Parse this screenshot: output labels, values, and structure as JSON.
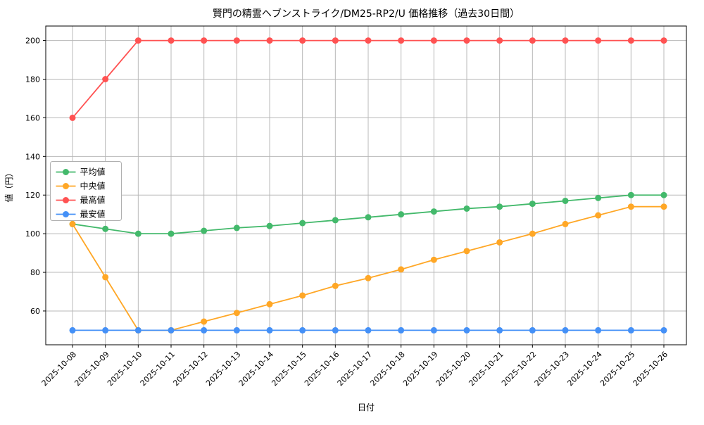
{
  "figure": {
    "background_color": "#ffffff",
    "grid_color": "#b8b8b8",
    "axes_edge_color": "#000000",
    "legend_border_color": "#b0b0b0"
  },
  "chart_data": {
    "type": "line",
    "title": "賢門の精霊ヘブンストライク/DM25-RP2/U 価格推移（過去30日間）",
    "xlabel": "日付",
    "ylabel": "値（円）",
    "x": [
      "2025-10-08",
      "2025-10-09",
      "2025-10-10",
      "2025-10-11",
      "2025-10-12",
      "2025-10-13",
      "2025-10-14",
      "2025-10-15",
      "2025-10-16",
      "2025-10-17",
      "2025-10-18",
      "2025-10-19",
      "2025-10-20",
      "2025-10-21",
      "2025-10-22",
      "2025-10-23",
      "2025-10-24",
      "2025-10-25",
      "2025-10-26"
    ],
    "ylim": [
      42.5,
      207.5
    ],
    "yticks": [
      60,
      80,
      100,
      120,
      140,
      160,
      180,
      200
    ],
    "grid": true,
    "legend_position": "center left",
    "series": [
      {
        "id": "average",
        "name": "平均値",
        "color": "#43b96b",
        "values": [
          105,
          102.5,
          100,
          100,
          101.5,
          103,
          104,
          105.5,
          107,
          108.5,
          110,
          111.5,
          113,
          114,
          115.5,
          117,
          118.5,
          120,
          120
        ]
      },
      {
        "id": "median",
        "name": "中央値",
        "color": "#ffa726",
        "values": [
          105,
          77.5,
          50,
          50,
          54.5,
          59,
          63.5,
          68,
          73,
          77,
          81.5,
          86.5,
          91,
          95.5,
          100,
          105,
          109.5,
          114,
          114
        ]
      },
      {
        "id": "highest",
        "name": "最高値",
        "color": "#ff5252",
        "values": [
          160,
          180,
          200,
          200,
          200,
          200,
          200,
          200,
          200,
          200,
          200,
          200,
          200,
          200,
          200,
          200,
          200,
          200,
          200
        ]
      },
      {
        "id": "lowest",
        "name": "最安値",
        "color": "#4490f7",
        "values": [
          50,
          50,
          50,
          50,
          50,
          50,
          50,
          50,
          50,
          50,
          50,
          50,
          50,
          50,
          50,
          50,
          50,
          50,
          50
        ]
      }
    ]
  }
}
